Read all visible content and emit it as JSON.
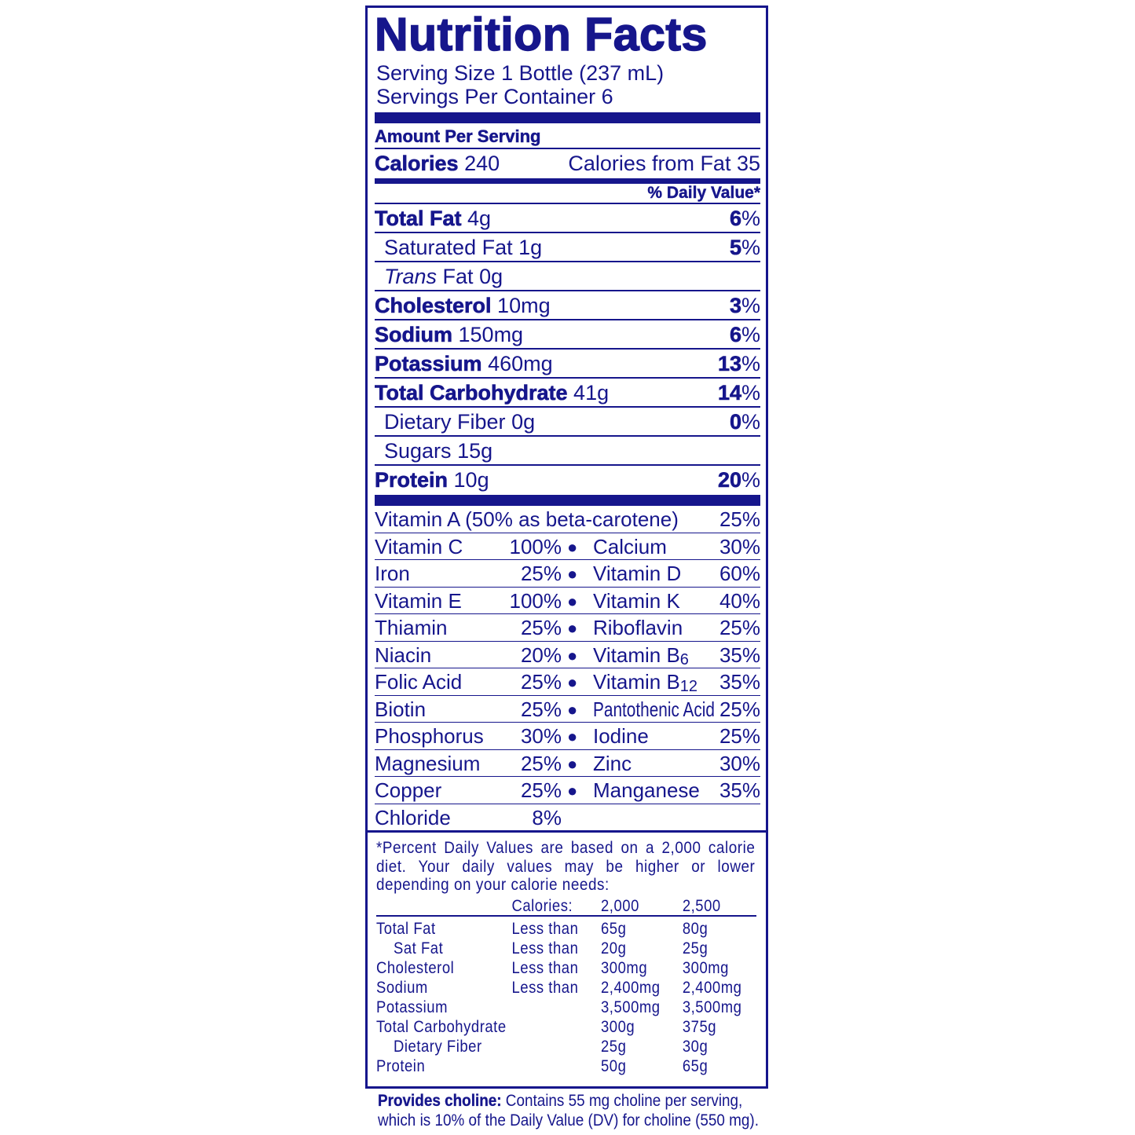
{
  "title": "Nutrition Facts",
  "serving_size": "Serving Size 1 Bottle (237 mL)",
  "servings_per_container": "Servings Per Container 6",
  "amount_per_serving": "Amount Per Serving",
  "calories": {
    "label": "Calories",
    "value": "240",
    "from_fat": "Calories from Fat 35"
  },
  "daily_value_header": "% Daily Value*",
  "nutrients": [
    {
      "name": "Total Fat",
      "amount": "4g",
      "pct": "6",
      "bold": true
    },
    {
      "name": "Saturated Fat",
      "amount": "1g",
      "pct": "5",
      "bold": false
    },
    {
      "name": "Trans",
      "name2": "Fat",
      "amount": "0g",
      "pct": "",
      "bold": false
    },
    {
      "name": "Cholesterol",
      "amount": "10mg",
      "pct": "3",
      "bold": true
    },
    {
      "name": "Sodium",
      "amount": "150mg",
      "pct": "6",
      "bold": true
    },
    {
      "name": "Potassium",
      "amount": "460mg",
      "pct": "13",
      "bold": true
    },
    {
      "name": "Total Carbohydrate",
      "amount": "41g",
      "pct": "14",
      "bold": true
    },
    {
      "name": "Dietary Fiber",
      "amount": "0g",
      "pct": "0",
      "bold": false
    },
    {
      "name": "Sugars",
      "amount": "15g",
      "pct": "",
      "bold": false
    },
    {
      "name": "Protein",
      "amount": "10g",
      "pct": "20",
      "bold": true
    }
  ],
  "percent_sign": "%",
  "vitamin_a": {
    "name": "Vitamin A (50% as beta-carotene)",
    "pct": "25%"
  },
  "vitamins": [
    {
      "left": "Vitamin C",
      "left_pct": "100%",
      "right": "Calcium",
      "right_pct": "30%"
    },
    {
      "left": "Iron",
      "left_pct": "25%",
      "right": "Vitamin D",
      "right_pct": "60%"
    },
    {
      "left": "Vitamin E",
      "left_pct": "100%",
      "right": "Vitamin K",
      "right_pct": "40%"
    },
    {
      "left": "Thiamin",
      "left_pct": "25%",
      "right": "Riboflavin",
      "right_pct": "25%"
    },
    {
      "left": "Niacin",
      "left_pct": "20%",
      "right": "Vitamin B",
      "right_sub": "6",
      "right_pct": "35%"
    },
    {
      "left": "Folic Acid",
      "left_pct": "25%",
      "right": "Vitamin B",
      "right_sub": "12",
      "right_pct": "35%"
    },
    {
      "left": "Biotin",
      "left_pct": "25%",
      "right": "Pantothenic Acid",
      "right_pct": "25%"
    },
    {
      "left": "Phosphorus",
      "left_pct": "30%",
      "right": "Iodine",
      "right_pct": "25%"
    },
    {
      "left": "Magnesium",
      "left_pct": "25%",
      "right": "Zinc",
      "right_pct": "30%"
    },
    {
      "left": "Copper",
      "left_pct": "25%",
      "right": "Manganese",
      "right_pct": "35%"
    }
  ],
  "chloride": {
    "name": "Chloride",
    "pct": "8%"
  },
  "bullet": "●",
  "footnote": "*Percent Daily Values are based on a 2,000 calorie diet. Your daily values may be higher or lower depending on your calorie needs:",
  "dv_table": {
    "header": [
      "",
      "Calories:",
      "2,000",
      "2,500"
    ],
    "rows": [
      [
        "Total Fat",
        "Less than",
        "65g",
        "80g"
      ],
      [
        "Sat Fat",
        "Less than",
        "20g",
        "25g"
      ],
      [
        "Cholesterol",
        "Less than",
        "300mg",
        "300mg"
      ],
      [
        "Sodium",
        "Less than",
        "2,400mg",
        "2,400mg"
      ],
      [
        "Potassium",
        "",
        "3,500mg",
        "3,500mg"
      ],
      [
        "Total Carbohydrate",
        "",
        "300g",
        "375g"
      ],
      [
        "Dietary Fiber",
        "",
        "25g",
        "30g"
      ],
      [
        "Protein",
        "",
        "50g",
        "65g"
      ]
    ]
  },
  "choline": {
    "label": "Provides choline:",
    "text1": " Contains 55 mg choline per serving,",
    "text2": "which is 10% of the Daily Value (DV) for choline (550 mg)."
  },
  "colors": {
    "ink": "#16168c",
    "background": "#ffffff"
  }
}
